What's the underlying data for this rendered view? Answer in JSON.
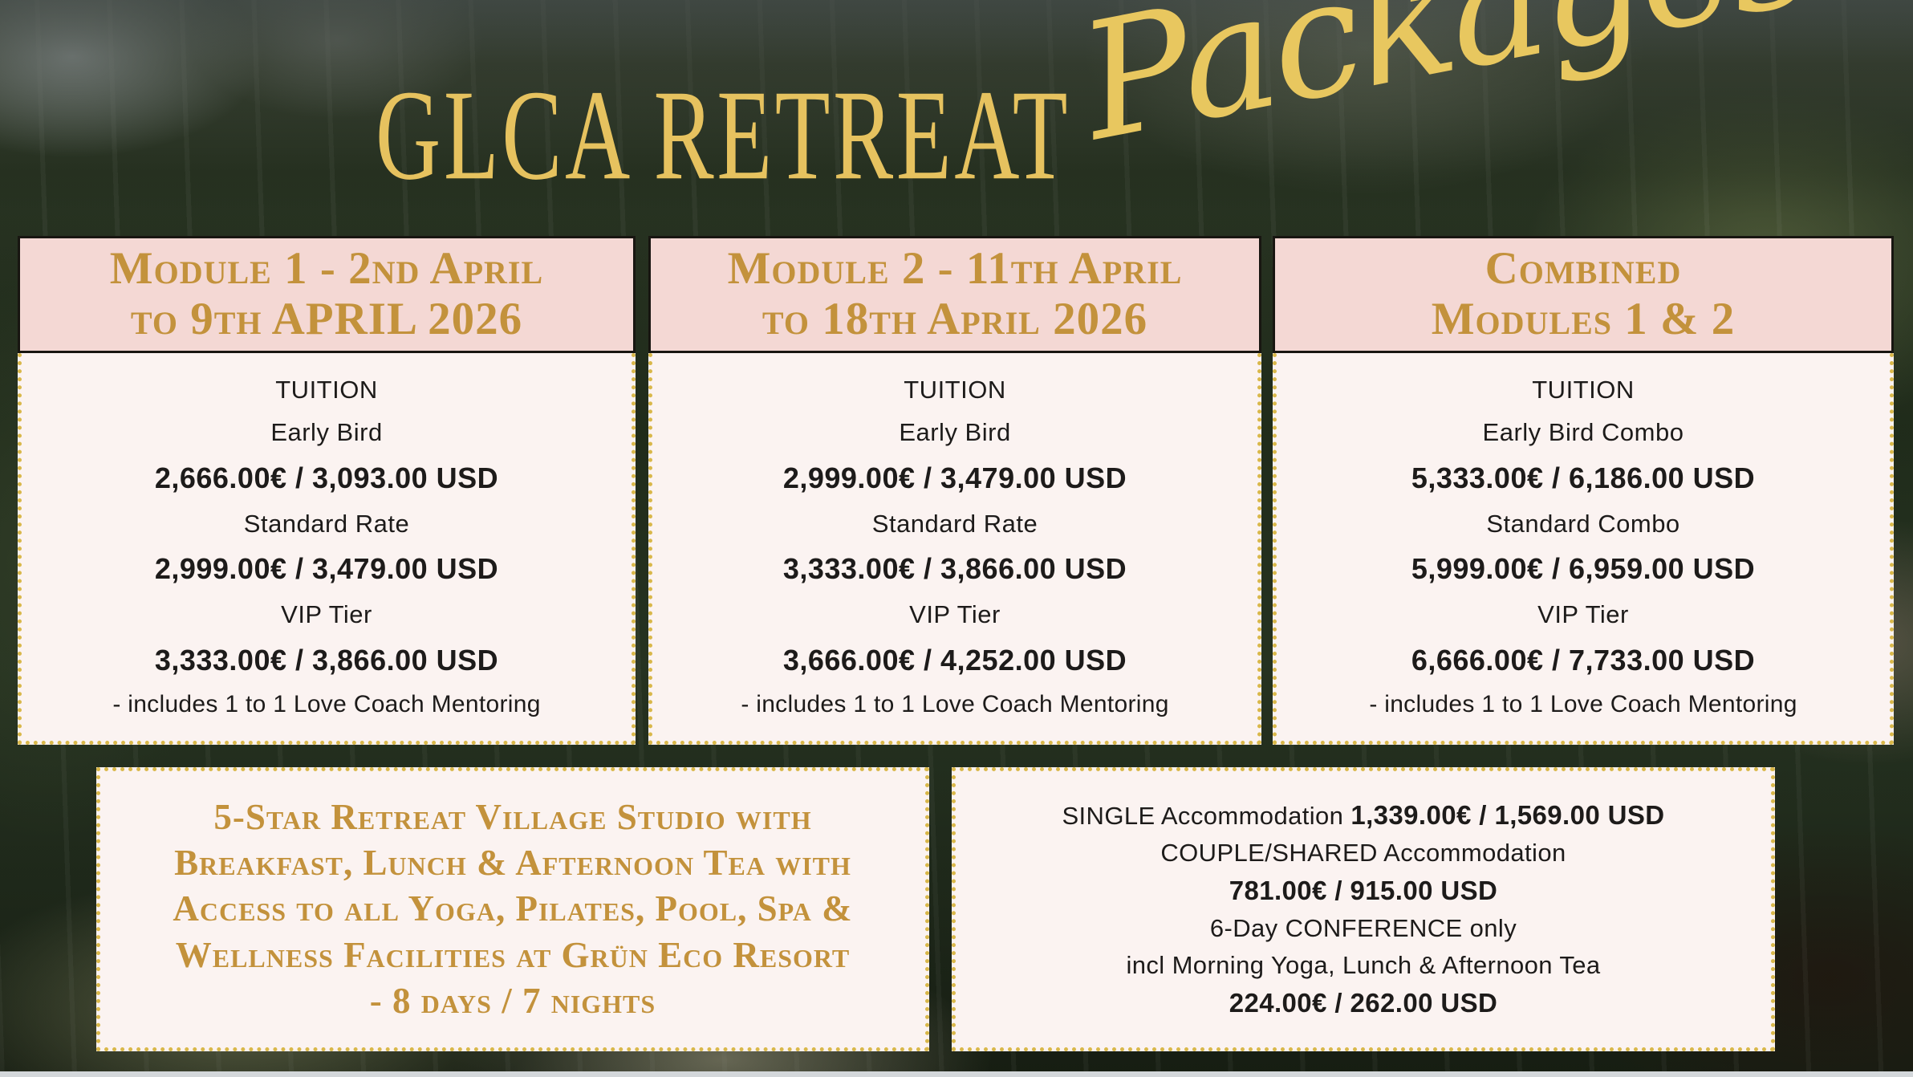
{
  "title": {
    "main": "GLCA RETREAT",
    "script": "Packages"
  },
  "columns": [
    {
      "header1": "Module 1 - 2nd April",
      "header2": "to 9th APRIL 2026",
      "rows": [
        "TUITION",
        "Early Bird",
        "2,666.00€ / 3,093.00 USD",
        "Standard Rate",
        "2,999.00€ / 3,479.00 USD",
        "VIP Tier",
        "3,333.00€ / 3,866.00 USD",
        "- includes 1 to 1 Love Coach Mentoring"
      ]
    },
    {
      "header1": "Module 2 - 11th April",
      "header2": "to 18th April 2026",
      "rows": [
        "TUITION",
        "Early Bird",
        "2,999.00€ / 3,479.00 USD",
        "Standard Rate",
        "3,333.00€ / 3,866.00 USD",
        "VIP Tier",
        "3,666.00€ / 4,252.00 USD",
        "- includes 1 to 1 Love Coach Mentoring"
      ]
    },
    {
      "header1": "Combined",
      "header2": "Modules 1 & 2",
      "rows": [
        "TUITION",
        "Early Bird Combo",
        "5,333.00€ / 6,186.00 USD",
        "Standard Combo",
        "5,999.00€ / 6,959.00 USD",
        "VIP Tier",
        "6,666.00€ / 7,733.00 USD",
        "- includes 1 to 1 Love Coach Mentoring"
      ]
    }
  ],
  "retreat_box": {
    "line1": "5-Star Retreat Village Studio with",
    "line2": "Breakfast, Lunch & Afternoon Tea with",
    "line3": "Access to all Yoga, Pilates, Pool, Spa &",
    "line4": "Wellness Facilities at Grün Eco Resort",
    "line5": "- 8 days / 7 nights"
  },
  "accommodation_box": {
    "single_label": "SINGLE Accommodation ",
    "single_price": "1,339.00€ / 1,569.00 USD",
    "couple_label": "COUPLE/SHARED Accommodation",
    "couple_price": "781.00€ / 915.00 USD",
    "conference_label": "6-Day CONFERENCE only",
    "conference_detail": "incl Morning Yoga, Lunch & Afternoon Tea",
    "conference_price": "224.00€ / 262.00 USD"
  },
  "colors": {
    "header_pink": "#f4d8d4",
    "gold_text": "#c3923c",
    "gold_title": "#e6c25f",
    "gold_dotted_border": "#d9b84a",
    "card_background": "#fbf3f1",
    "body_text": "#1d1b1a"
  }
}
